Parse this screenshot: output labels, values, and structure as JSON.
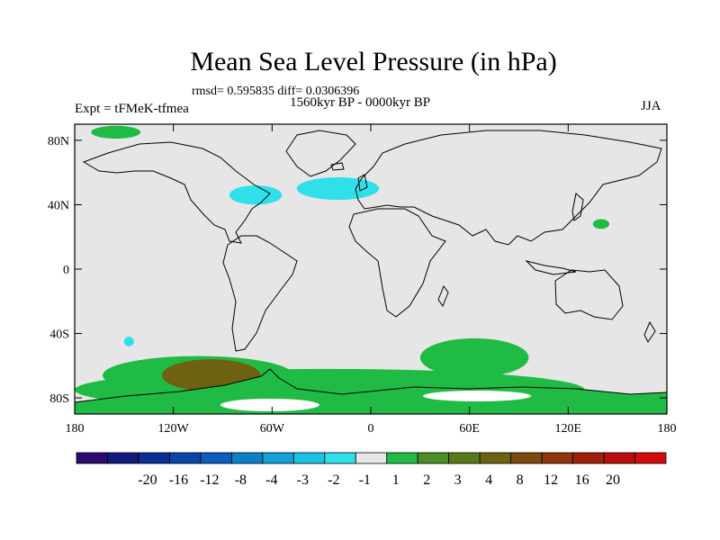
{
  "chart_data": {
    "type": "heatmap",
    "title": "Mean Sea Level Pressure (in hPa)",
    "stats_text": "rmsd= 0.595835 diff= 0.0306396",
    "period": "1560kyr BP - 0000kyr BP",
    "experiment": "Expt = tFMeK-tfmea",
    "season": "JJA",
    "x_ticks": [
      "180",
      "120W",
      "60W",
      "0",
      "60E",
      "120E",
      "180"
    ],
    "y_ticks": [
      "80N",
      "40N",
      "0",
      "40S",
      "80S"
    ],
    "xlim": [
      -180,
      180
    ],
    "ylim": [
      -90,
      90
    ],
    "colorbar": {
      "colors": [
        "#2a0a6e",
        "#101a7c",
        "#0a2f95",
        "#0847a8",
        "#0a5ebd",
        "#0b80c7",
        "#10a2d6",
        "#1bc2e3",
        "#2fe0ea",
        "#e6e6e6",
        "#20bb45",
        "#4a8c25",
        "#5a7a18",
        "#6e6212",
        "#7e4a0e",
        "#8e360b",
        "#a41f0b",
        "#bc0d0b",
        "#d60a0a"
      ],
      "labels": [
        "-20",
        "-16",
        "-12",
        "-8",
        "-4",
        "-3",
        "-2",
        "-1",
        "1",
        "2",
        "3",
        "4",
        "8",
        "12",
        "16",
        "20"
      ]
    },
    "regions": [
      {
        "name": "antarctic-ring",
        "lon": -25,
        "lat": -75,
        "rx": 155,
        "ry": 13,
        "color": "#20bb45"
      },
      {
        "name": "south-pacific-high",
        "lon": -105,
        "lat": -66,
        "rx": 58,
        "ry": 12,
        "color": "#20bb45"
      },
      {
        "name": "south-pacific-core",
        "lon": -97,
        "lat": -66,
        "rx": 30,
        "ry": 10,
        "color": "#6e6212"
      },
      {
        "name": "south-indian-high",
        "lon": 63,
        "lat": -55,
        "rx": 33,
        "ry": 12,
        "color": "#20bb45"
      },
      {
        "name": "arctic-high",
        "lon": -155,
        "lat": 85,
        "rx": 15,
        "ry": 4,
        "color": "#20bb45"
      },
      {
        "name": "pacific-high",
        "lon": 140,
        "lat": 28,
        "rx": 5,
        "ry": 3,
        "color": "#20bb45"
      },
      {
        "name": "north-atlantic-low",
        "lon": -20,
        "lat": 50,
        "rx": 25,
        "ry": 7,
        "color": "#2fe0ea"
      },
      {
        "name": "north-america-low",
        "lon": -70,
        "lat": 46,
        "rx": 16,
        "ry": 6,
        "color": "#2fe0ea"
      },
      {
        "name": "south-pacific-low",
        "lon": -147,
        "lat": -45,
        "rx": 3,
        "ry": 3,
        "color": "#2fe0ea"
      }
    ]
  }
}
